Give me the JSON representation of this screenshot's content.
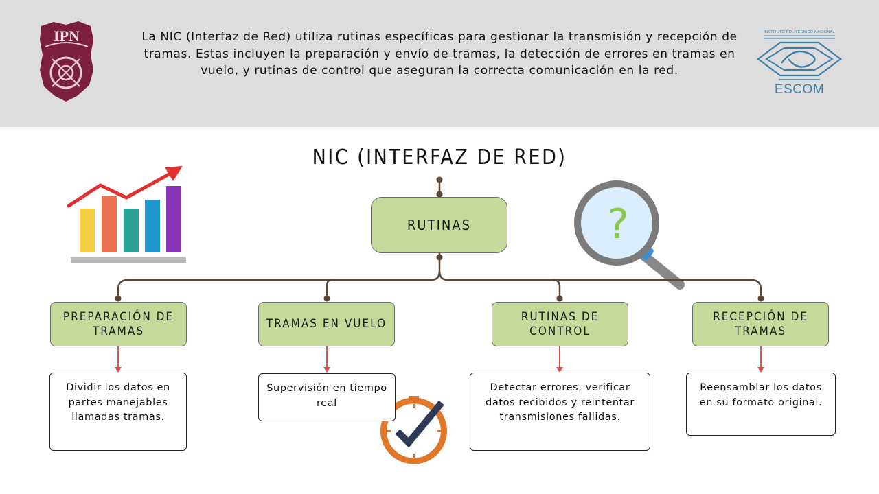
{
  "header": {
    "description": "La NIC (Interfaz de Red) utiliza rutinas específicas para gestionar la transmisión y recepción de tramas. Estas incluyen la preparación y envío de tramas, la detección de errores en tramas en vuelo, y rutinas de control que aseguran la correcta comunicación en la red."
  },
  "logos": {
    "ipn_text": "IPN",
    "escom_institution": "INSTITUTO POLITÉCNICO NACIONAL",
    "escom_text": "ESCOM"
  },
  "diagram": {
    "title": "NIC (INTERFAZ DE RED)",
    "root": "RUTINAS",
    "branches": [
      {
        "label": "PREPARACIÓN DE TRAMAS",
        "description": "Dividir los datos en partes manejables llamadas tramas."
      },
      {
        "label": "TRAMAS EN VUELO",
        "description": "Supervisión en tiempo real"
      },
      {
        "label": "RUTINAS DE CONTROL",
        "description": "Detectar errores, verificar datos recibidos y reintentar transmisiones fallidas."
      },
      {
        "label": "RECEPCIÓN DE TRAMAS",
        "description": "Reensamblar los datos en su formato original."
      }
    ]
  },
  "icons": {
    "chart": "bar-chart-growth-icon",
    "magnifier": "magnifying-glass-question-icon",
    "clock": "clock-checkmark-icon"
  },
  "colors": {
    "header_bg": "#dddddd",
    "node_fill": "#c5d99a",
    "connector": "#5a4636",
    "arrow": "#d9534f",
    "ipn_maroon": "#7a1f3d",
    "escom_blue": "#3d7fa6"
  }
}
